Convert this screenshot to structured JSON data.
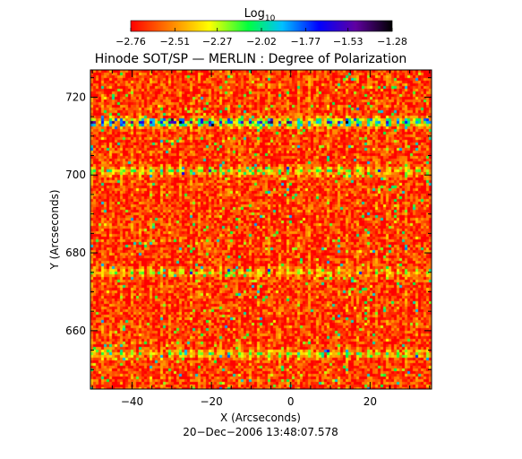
{
  "chart_data": {
    "type": "heatmap",
    "title": "Hinode SOT/SP — MERLIN : Degree of Polarization",
    "xlabel": "X (Arcseconds)",
    "ylabel": "Y (Arcseconds)",
    "xlim": [
      -50.5,
      35.5
    ],
    "ylim": [
      645,
      727
    ],
    "x_ticks": [
      -40,
      -20,
      0,
      20
    ],
    "x_tick_labels": [
      "−40",
      "−20",
      "0",
      "20"
    ],
    "y_ticks": [
      660,
      680,
      700,
      720
    ],
    "y_tick_labels": [
      "660",
      "680",
      "700",
      "720"
    ],
    "colorbar": {
      "base_label": "Log",
      "subscript": "10",
      "range": [
        -2.76,
        -1.28
      ],
      "ticks": [
        -2.76,
        -2.51,
        -2.27,
        -2.02,
        -1.77,
        -1.53,
        -1.28
      ],
      "tick_labels": [
        "−2.76",
        "−2.51",
        "−2.27",
        "−2.02",
        "−1.77",
        "−1.53",
        "−1.28"
      ],
      "colors": [
        "#ff0000",
        "#ff8000",
        "#ffff00",
        "#00ff40",
        "#00c0ff",
        "#0000ff",
        "#6000a0",
        "#000000"
      ]
    },
    "features": {
      "background_level": -2.68,
      "bands": [
        {
          "y": 713.5,
          "level": -1.62,
          "note": "strongest band"
        },
        {
          "y": 701,
          "level": -2.2
        },
        {
          "y": 675,
          "level": -2.3
        },
        {
          "y": 654,
          "level": -2.2
        }
      ],
      "grid": false
    },
    "timestamp": "20−Dec−2006 13:48:07.578"
  }
}
